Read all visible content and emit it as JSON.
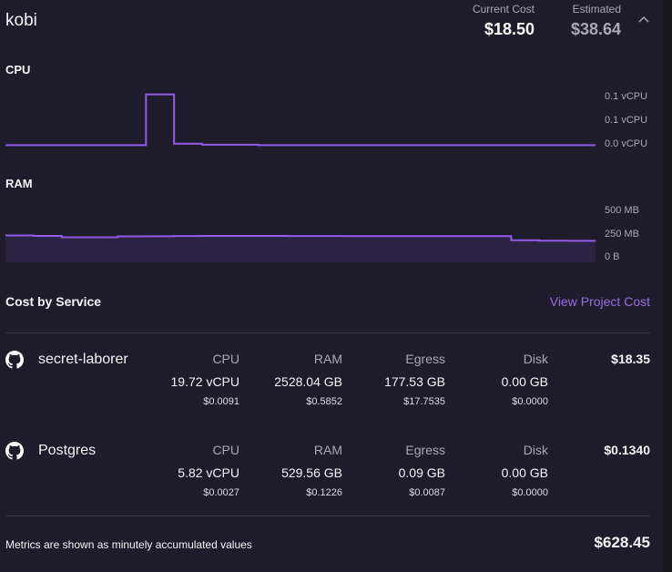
{
  "project": {
    "name": "kobi"
  },
  "costs": {
    "current_label": "Current Cost",
    "current_value": "$18.50",
    "estimated_label": "Estimated",
    "estimated_value": "$38.64"
  },
  "cpu_chart": {
    "title": "CPU",
    "y_labels": [
      "0.1 vCPU",
      "0.1 vCPU",
      "0.0 vCPU"
    ]
  },
  "ram_chart": {
    "title": "RAM",
    "y_labels": [
      "500 MB",
      "250 MB",
      "0 B"
    ]
  },
  "chart_data": [
    {
      "type": "line",
      "title": "CPU",
      "ylabel": "vCPU",
      "ylim": [
        0,
        0.11
      ],
      "x": [
        0,
        1,
        2,
        3,
        4,
        5,
        6,
        7,
        8,
        9,
        10,
        11,
        12,
        13,
        14,
        15,
        16,
        17,
        18,
        19,
        20
      ],
      "values": [
        0.001,
        0.001,
        0.001,
        0.001,
        0.001,
        0.1,
        0.004,
        0.002,
        0.002,
        0.001,
        0.001,
        0.001,
        0.001,
        0.001,
        0.001,
        0.001,
        0.001,
        0.001,
        0.001,
        0.001,
        0.001
      ],
      "color": "#8f5be8"
    },
    {
      "type": "area",
      "title": "RAM",
      "ylabel": "MB",
      "ylim": [
        0,
        500
      ],
      "x": [
        0,
        1,
        2,
        3,
        4,
        5,
        6,
        7,
        8,
        9,
        10,
        11,
        12,
        13,
        14,
        15,
        16,
        17,
        18,
        19,
        20
      ],
      "values": [
        238,
        234,
        222,
        222,
        230,
        231,
        233,
        234,
        234,
        234,
        233,
        233,
        232,
        232,
        232,
        232,
        232,
        232,
        196,
        192,
        190
      ],
      "color": "#8f5be8"
    }
  ],
  "cost_by_service": {
    "title": "Cost by Service",
    "link_label": "View Project Cost",
    "column_headers": {
      "cpu": "CPU",
      "ram": "RAM",
      "egress": "Egress",
      "disk": "Disk"
    },
    "services": [
      {
        "name": "secret-laborer",
        "icon": "github-icon",
        "cpu_value": "19.72 vCPU",
        "cpu_cost": "$0.0091",
        "ram_value": "2528.04 GB",
        "ram_cost": "$0.5852",
        "egress_value": "177.53 GB",
        "egress_cost": "$17.7535",
        "disk_value": "0.00 GB",
        "disk_cost": "$0.0000",
        "total": "$18.35"
      },
      {
        "name": "Postgres",
        "icon": "github-icon",
        "cpu_value": "5.82 vCPU",
        "cpu_cost": "$0.0027",
        "ram_value": "529.56 GB",
        "ram_cost": "$0.1226",
        "egress_value": "0.09 GB",
        "egress_cost": "$0.0087",
        "disk_value": "0.00 GB",
        "disk_cost": "$0.0000",
        "total": "$0.1340"
      }
    ]
  },
  "footer": {
    "note": "Metrics are shown as minutely accumulated values",
    "total": "$628.45"
  },
  "colors": {
    "background": "#1e1c2b",
    "accent": "#8f5be8",
    "link": "#9a6de0"
  }
}
